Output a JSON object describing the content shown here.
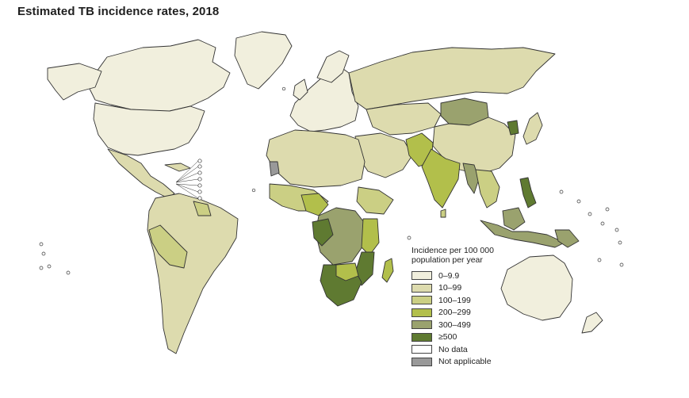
{
  "title": "Estimated TB incidence rates, 2018",
  "colors": {
    "c0": "#f1efdd",
    "c1": "#dddbae",
    "c2": "#cbcf84",
    "c3": "#b2bf4b",
    "c4": "#9aa26e",
    "c5": "#5f7a31",
    "nodata": "#ffffff",
    "na": "#999999"
  },
  "legend": {
    "title_line1": "Incidence per 100 000",
    "title_line2": "population per year",
    "items": [
      {
        "label": "0–9.9",
        "color": "#f1efdd"
      },
      {
        "label": "10–99",
        "color": "#dddbae"
      },
      {
        "label": "100–199",
        "color": "#cbcf84"
      },
      {
        "label": "200–299",
        "color": "#b2bf4b"
      },
      {
        "label": "300–499",
        "color": "#9aa26e"
      },
      {
        "label": "≥500",
        "color": "#5f7a31"
      },
      {
        "label": "No data",
        "color": "#ffffff"
      },
      {
        "label": "Not applicable",
        "color": "#999999"
      }
    ]
  }
}
